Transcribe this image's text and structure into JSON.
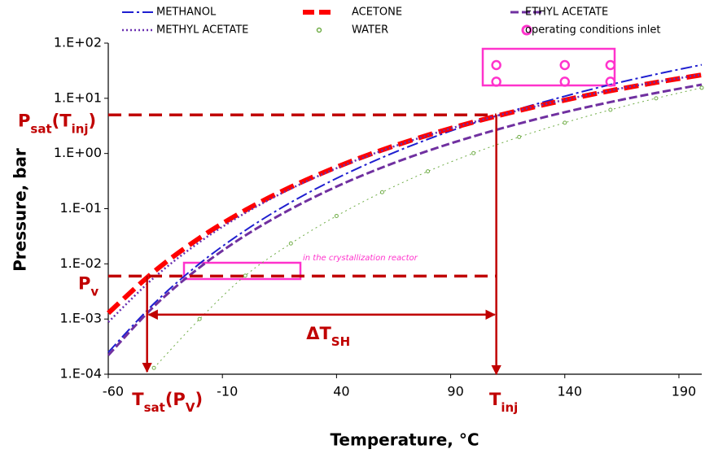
{
  "chart_data": {
    "type": "line",
    "xlabel": "Temperature, °C",
    "ylabel": "Pressure, bar",
    "x": [
      -60,
      -40,
      -20,
      0,
      20,
      40,
      60,
      80,
      100,
      120,
      140,
      160,
      180,
      200
    ],
    "xlim": [
      -60,
      200
    ],
    "xticks": [
      -60,
      -10,
      40,
      90,
      140,
      190
    ],
    "log_y": true,
    "ylim": [
      0.0001,
      100
    ],
    "yticks": [
      {
        "value": 0.0001,
        "label": "1.E-04"
      },
      {
        "value": 0.001,
        "label": "1.E-03"
      },
      {
        "value": 0.01,
        "label": "1.E-02"
      },
      {
        "value": 0.1,
        "label": "1.E-01"
      },
      {
        "value": 1,
        "label": "1.E+00"
      },
      {
        "value": 10,
        "label": "1.E+01"
      },
      {
        "value": 100,
        "label": "1.E+02"
      }
    ],
    "grid": false,
    "legend": "top",
    "series": [
      {
        "name": "METHANOL",
        "color": "#1f1fd0",
        "style": "dash-dot",
        "width": 2,
        "values": [
          0.00025,
          0.0019,
          0.0101,
          0.0403,
          0.13,
          0.354,
          0.845,
          1.81,
          3.54,
          6.42,
          10.9,
          17.7,
          27.3,
          40.5
        ]
      },
      {
        "name": "ACETONE",
        "color": "#ff0000",
        "style": "dash",
        "width": 6,
        "values": [
          0.00128,
          0.0072,
          0.0294,
          0.0935,
          0.247,
          0.566,
          1.16,
          2.15,
          3.71,
          6.02,
          9.27,
          13.7,
          19.4,
          26.6
        ]
      },
      {
        "name": "ETHYL ACETATE",
        "color": "#7030a0",
        "style": "dash",
        "width": 3,
        "values": [
          0.00022,
          0.00169,
          0.0086,
          0.0326,
          0.0984,
          0.251,
          0.558,
          1.115,
          2.04,
          3.48,
          5.6,
          8.55,
          12.5,
          17.7
        ]
      },
      {
        "name": "METHYL ACETATE",
        "color": "#6a2fb0",
        "style": "dot",
        "width": 2.5,
        "values": [
          0.00088,
          0.0056,
          0.0248,
          0.0835,
          0.23,
          0.541,
          1.13,
          2.13,
          3.71,
          6.06,
          9.38,
          13.9,
          19.7,
          27.0
        ]
      },
      {
        "name": "WATER",
        "color": "#70ad47",
        "style": "markers-line",
        "width": 1,
        "values": [
          null,
          0.00013,
          0.001,
          0.0061,
          0.0234,
          0.0738,
          0.199,
          0.474,
          1.013,
          1.99,
          3.61,
          6.18,
          10.0,
          15.5
        ]
      },
      {
        "name": "operating conditions inlet",
        "color": "#ff33cc",
        "style": "markers",
        "width": 2.5,
        "x": [
          110,
          140,
          160,
          110,
          140,
          160
        ],
        "values": [
          40,
          40,
          40,
          20,
          20,
          20
        ]
      }
    ],
    "reference_lines": {
      "psat": {
        "value": 5,
        "label": [
          {
            "text": "P"
          },
          {
            "text": "sat",
            "sub": true
          },
          {
            "text": "(T"
          },
          {
            "text": "inj",
            "sub": true
          },
          {
            "text": ")"
          }
        ]
      },
      "pv": {
        "value": 0.006,
        "label": [
          {
            "text": "P"
          },
          {
            "text": "v",
            "sub": true
          }
        ]
      },
      "tinj": {
        "value": 110,
        "label": [
          {
            "text": "T"
          },
          {
            "text": "inj",
            "sub": true
          }
        ]
      },
      "tsat": {
        "value": -43,
        "label": [
          {
            "text": "T"
          },
          {
            "text": "sat",
            "sub": true
          },
          {
            "text": "(P"
          },
          {
            "text": "V",
            "sub": true
          },
          {
            "text": ")"
          }
        ]
      },
      "dt": {
        "value": 0.0012,
        "label": [
          {
            "text": "ΔT"
          },
          {
            "text": "SH",
            "sub": true
          }
        ]
      }
    },
    "note": "in the crystallization reactor"
  }
}
